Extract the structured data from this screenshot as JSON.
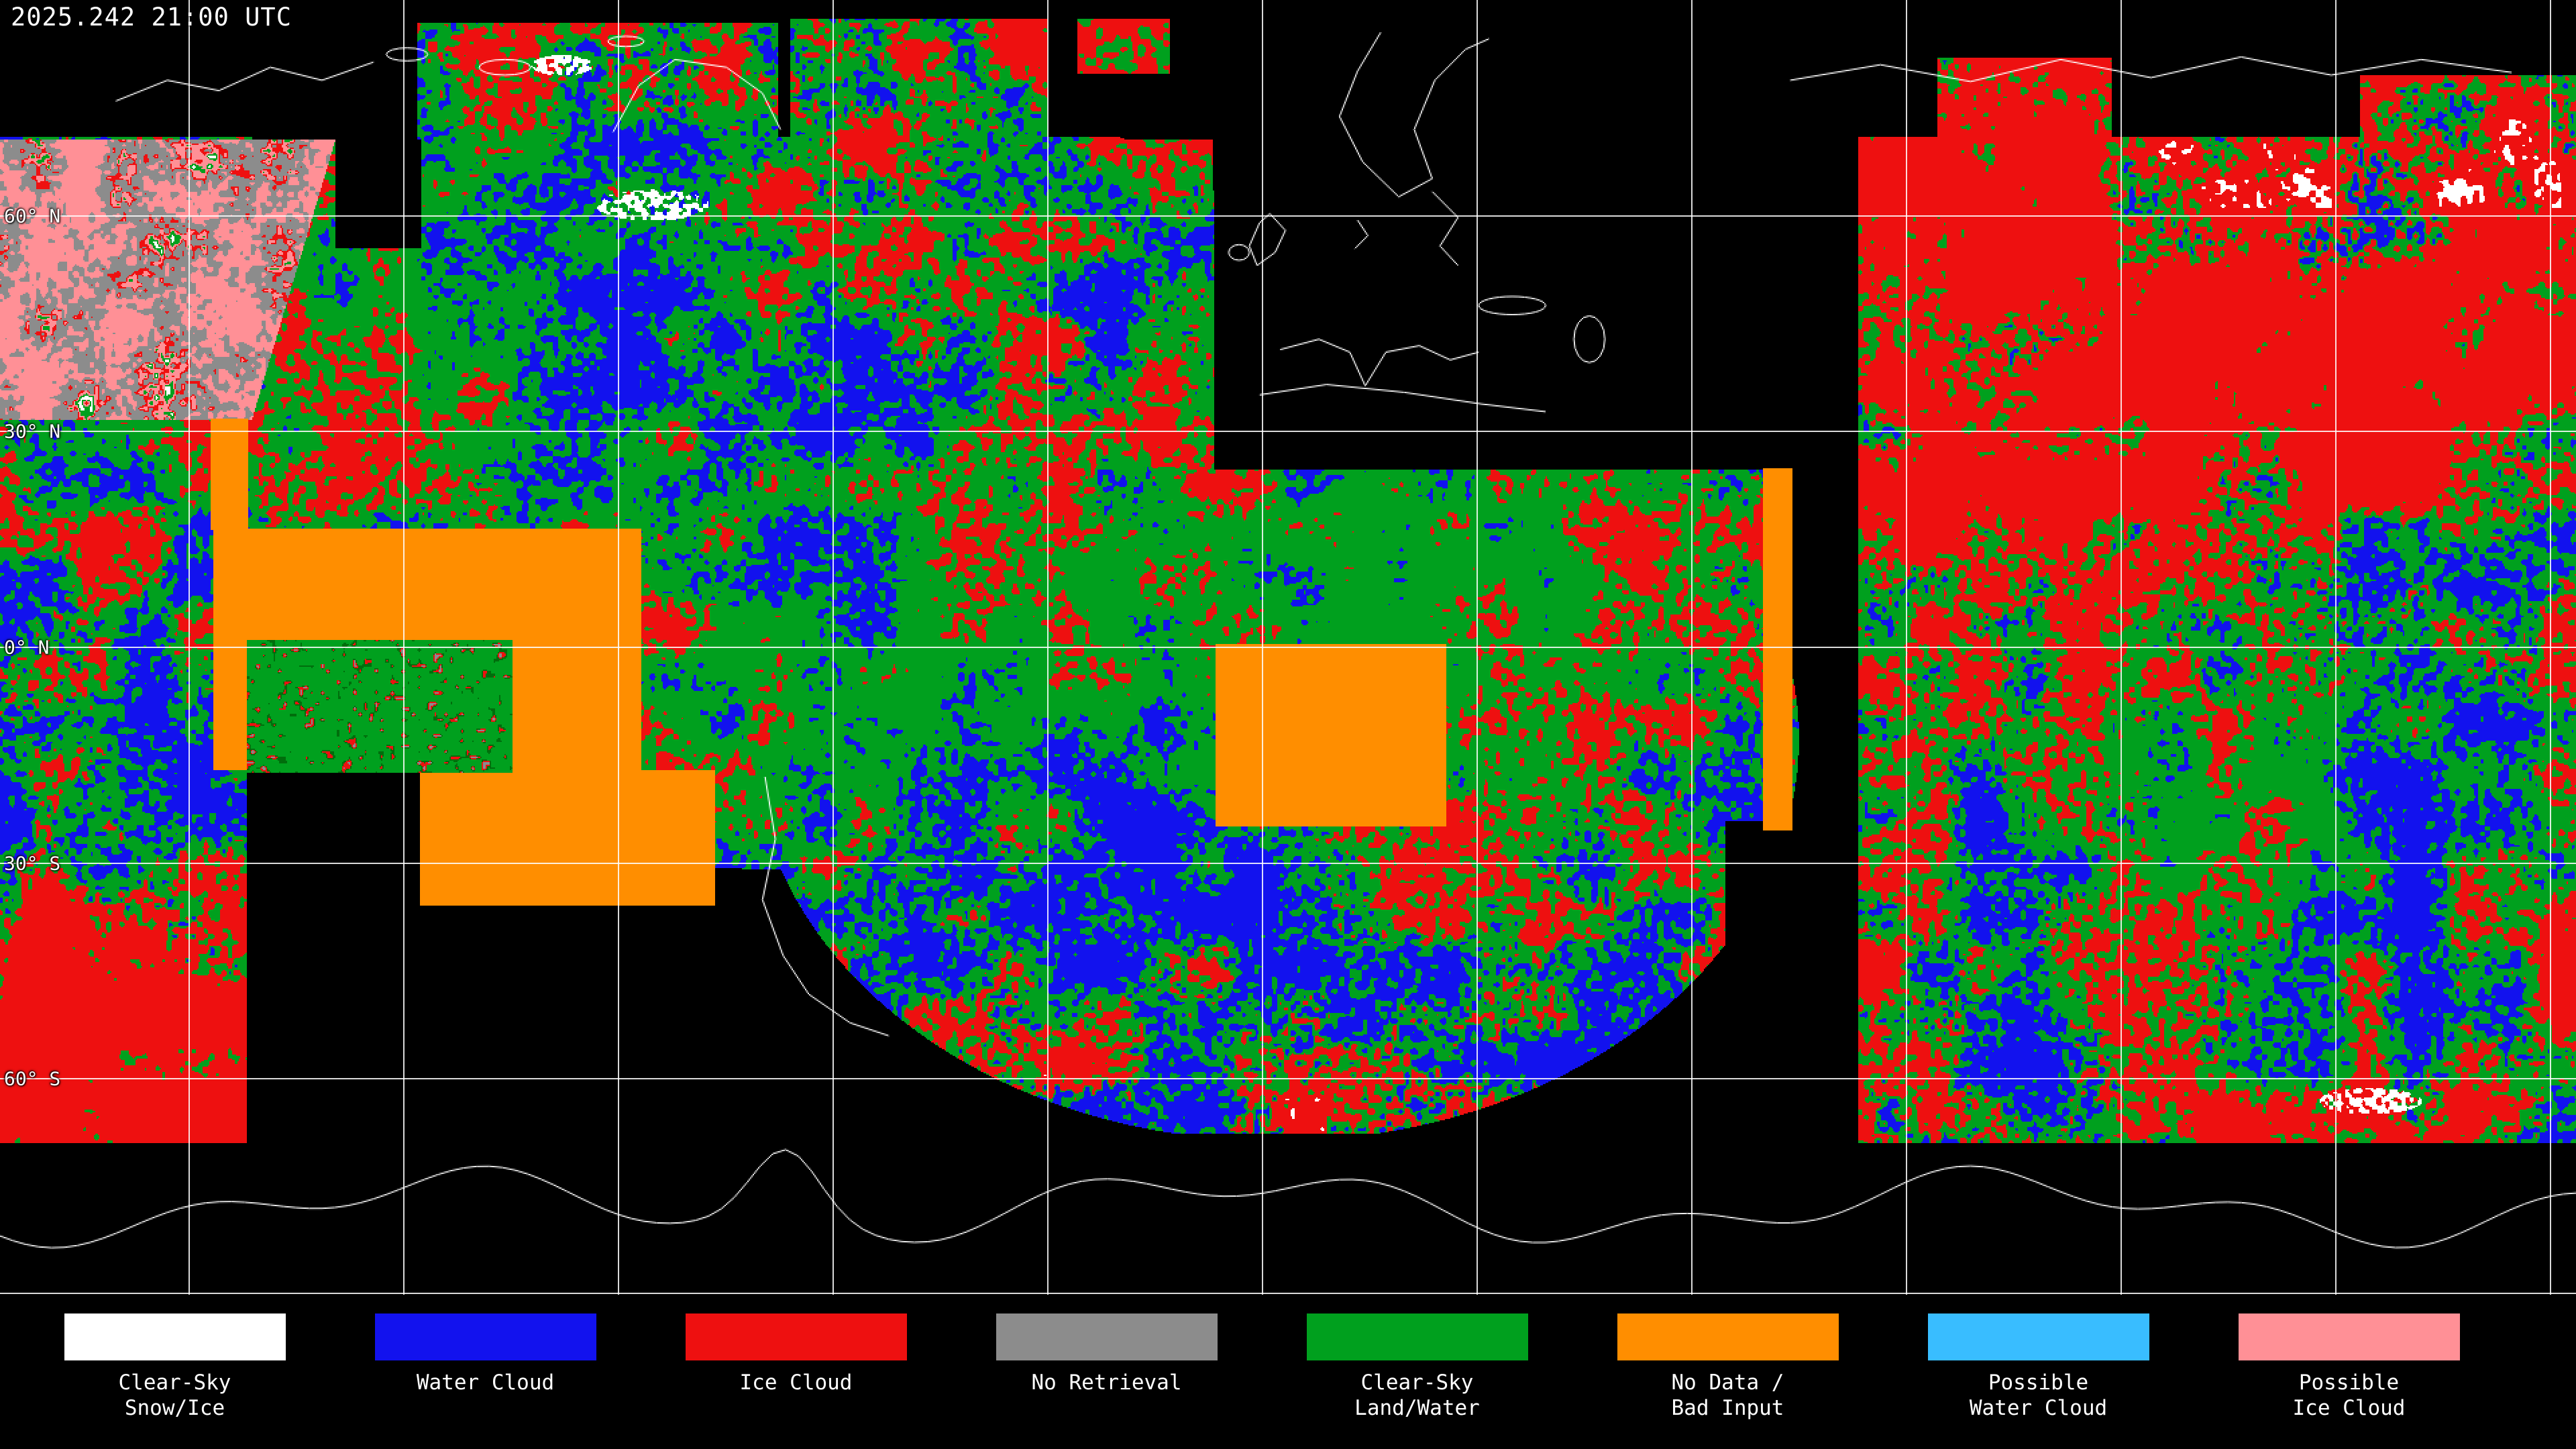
{
  "header": {
    "timestamp": "2025.242 21:00 UTC"
  },
  "map": {
    "background": "#000000",
    "grid_color": "#ffffff",
    "coastline_color": "#ffffff",
    "latitude_labels": [
      {
        "label": "60° N"
      },
      {
        "label": "30° N"
      },
      {
        "label": "0° N"
      },
      {
        "label": "30° S"
      },
      {
        "label": "60° S"
      }
    ]
  },
  "classes": {
    "clear_sky_snow_ice": "#ffffff",
    "water_cloud": "#1212ee",
    "ice_cloud": "#ee1010",
    "no_retrieval": "#8c8c8c",
    "clear_sky_land_water": "#00a01e",
    "no_data_bad_input": "#ff8e00",
    "possible_water_cloud": "#39bdff",
    "possible_ice_cloud": "#ff9096"
  },
  "legend": {
    "items": [
      {
        "line1": "Clear-Sky",
        "line2": "Snow/Ice",
        "color": "#ffffff"
      },
      {
        "line1": "Water Cloud",
        "line2": "",
        "color": "#1212ee"
      },
      {
        "line1": "Ice Cloud",
        "line2": "",
        "color": "#ee1010"
      },
      {
        "line1": "No Retrieval",
        "line2": "",
        "color": "#8c8c8c"
      },
      {
        "line1": "Clear-Sky",
        "line2": "Land/Water",
        "color": "#00a01e"
      },
      {
        "line1": "No Data /",
        "line2": "Bad Input",
        "color": "#ff8e00"
      },
      {
        "line1": "Possible",
        "line2": "Water Cloud",
        "color": "#39bdff"
      },
      {
        "line1": "Possible",
        "line2": "Ice Cloud",
        "color": "#ff9096"
      }
    ]
  }
}
